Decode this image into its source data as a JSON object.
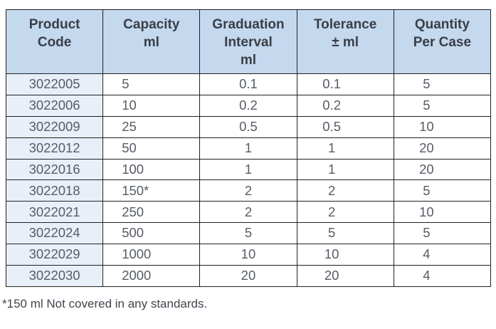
{
  "table": {
    "columns": [
      {
        "id": "product_code",
        "label": "Product\nCode"
      },
      {
        "id": "capacity",
        "label": "Capacity\nml"
      },
      {
        "id": "graduation",
        "label": "Graduation\nInterval\nml"
      },
      {
        "id": "tolerance",
        "label": "Tolerance\n± ml"
      },
      {
        "id": "quantity",
        "label": "Quantity\nPer Case"
      }
    ],
    "rows": [
      [
        "3022005",
        "5",
        "0.1",
        "0.1",
        "5"
      ],
      [
        "3022006",
        "10",
        "0.2",
        "0.2",
        "5"
      ],
      [
        "3022009",
        "25",
        "0.5",
        "0.5",
        "10"
      ],
      [
        "3022012",
        "50",
        "1",
        "1",
        "20"
      ],
      [
        "3022016",
        "100",
        "1",
        "1",
        "20"
      ],
      [
        "3022018",
        "150*",
        "2",
        "2",
        "5"
      ],
      [
        "3022021",
        "250",
        "2",
        "2",
        "10"
      ],
      [
        "3022024",
        "500",
        "5",
        "5",
        "5"
      ],
      [
        "3022029",
        "1000",
        "10",
        "10",
        "4"
      ],
      [
        "3022030",
        "2000",
        "20",
        "20",
        "4"
      ]
    ]
  },
  "footnote": "*150 ml Not covered in any standards.",
  "colors": {
    "header_bg": "#c4d8ee",
    "first_col_bg": "#e8eff8",
    "border": "#212121",
    "header_text": "#3a3e47",
    "data_text": "#575c66",
    "footnote_text": "#41454e"
  }
}
